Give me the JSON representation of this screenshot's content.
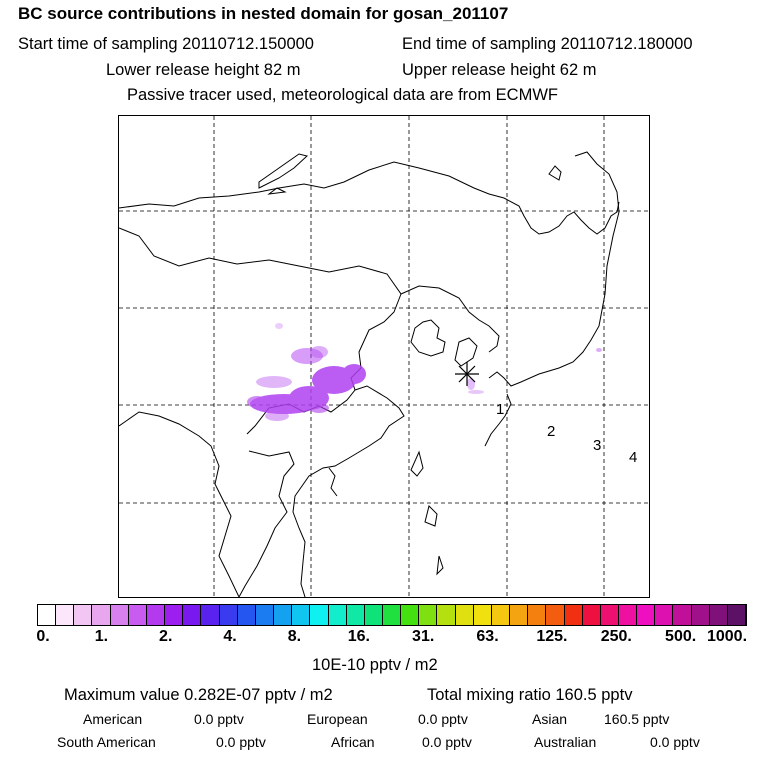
{
  "header": {
    "title": "BC  source contributions in nested domain for gosan_201107",
    "start": "Start time of sampling 20110712.150000",
    "end": "End time of sampling 20110712.180000",
    "lower": "Lower release height   82 m",
    "upper": "Upper release height   62 m",
    "tracer": "Passive tracer used, meteorological data are from ECMWF"
  },
  "map": {
    "markers": [
      "1",
      "2",
      "3",
      "4"
    ],
    "receptor_symbol": "✳",
    "plume_color": "#b040f0"
  },
  "colorbar": {
    "ticks": [
      "0.",
      "1.",
      "2.",
      "4.",
      "8.",
      "16.",
      "31.",
      "63.",
      "125.",
      "250.",
      "500.",
      "1000."
    ],
    "unit": "10E-10 pptv / m2",
    "colors": [
      "#ffffff",
      "#fbe6fb",
      "#f2c6f2",
      "#e8a6ee",
      "#d880ee",
      "#c85cf0",
      "#b43af0",
      "#9c1ff0",
      "#7a18f0",
      "#5a22ee",
      "#3a3aee",
      "#2556f0",
      "#1a7cf0",
      "#14a2f0",
      "#10c6f0",
      "#0ff0f0",
      "#12eecc",
      "#10e8a6",
      "#10e27a",
      "#20e040",
      "#44e010",
      "#7ee010",
      "#b4e010",
      "#e0e010",
      "#f0e010",
      "#f4c810",
      "#f4a410",
      "#f48010",
      "#f45c10",
      "#f03010",
      "#ee1040",
      "#ee1070",
      "#ee10a0",
      "#ee10c0",
      "#dd10b0",
      "#c0109a",
      "#a0108a",
      "#80107a",
      "#5c1066"
    ]
  },
  "summary": {
    "max_value": "Maximum value  0.282E-07 pptv / m2",
    "total_mixing": "Total mixing ratio      160.5 pptv",
    "rows": [
      [
        {
          "label": "American",
          "value": "0.0 pptv"
        },
        {
          "label": "European",
          "value": "0.0 pptv"
        },
        {
          "label": "Asian",
          "value": "160.5 pptv"
        }
      ],
      [
        {
          "label": "South American",
          "value": "0.0 pptv"
        },
        {
          "label": "African",
          "value": "0.0 pptv"
        },
        {
          "label": "Australian",
          "value": "0.0 pptv"
        }
      ]
    ]
  }
}
